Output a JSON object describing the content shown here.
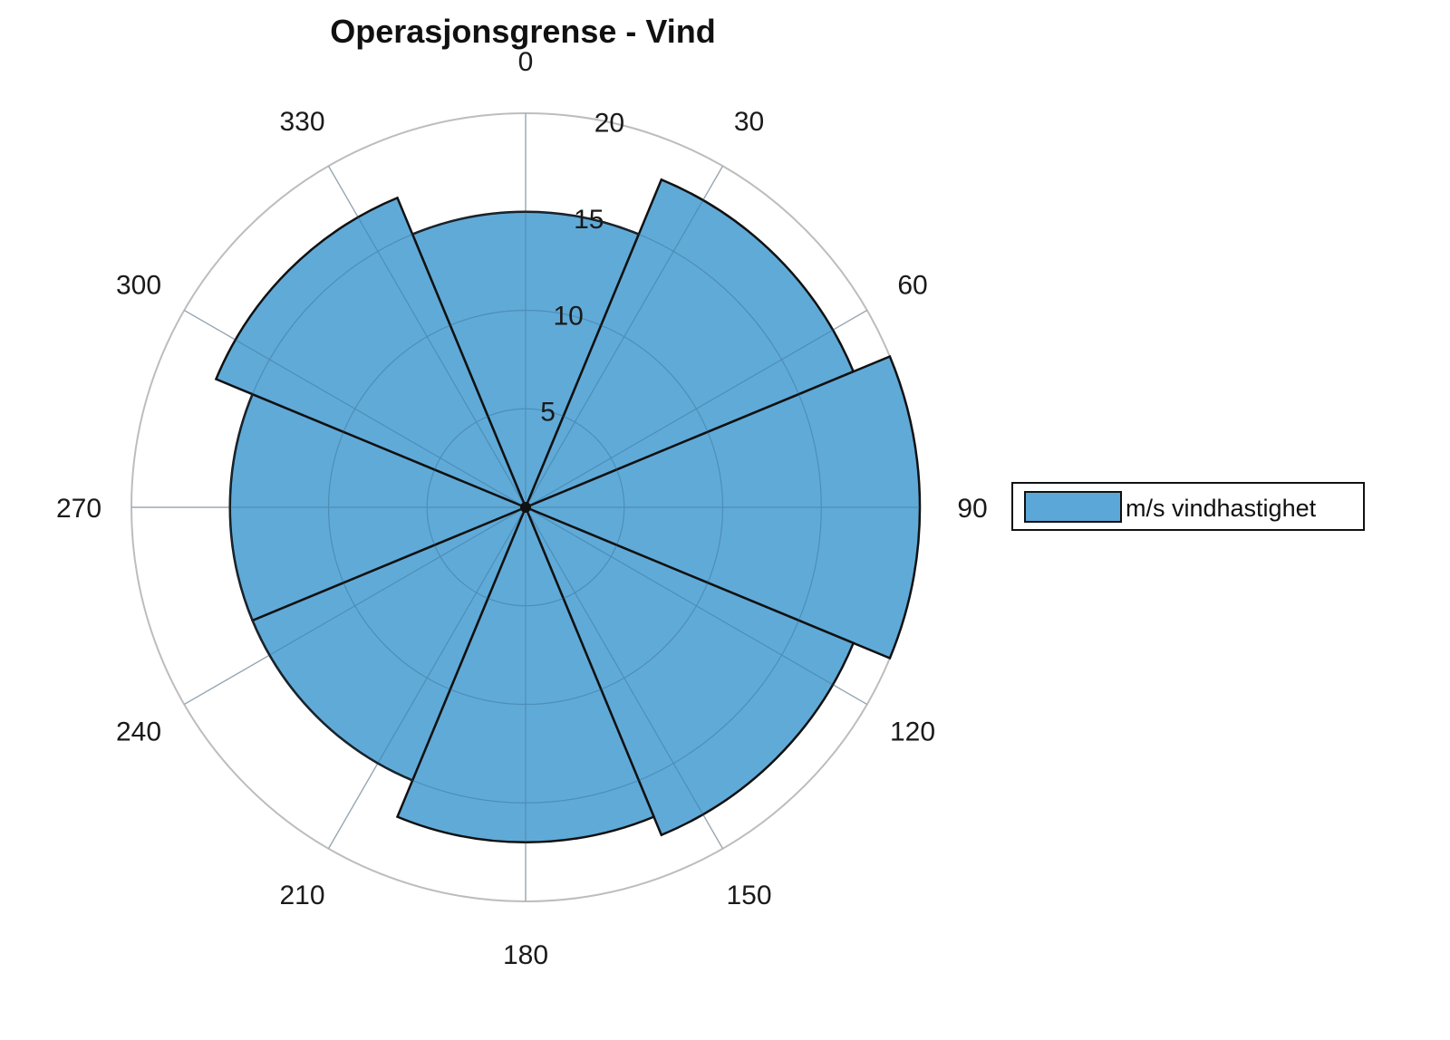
{
  "chart_data": {
    "type": "bar",
    "subtype": "polar-histogram",
    "title": "Operasjonsgrense - Vind",
    "angular_ticks": [
      "0",
      "30",
      "60",
      "90",
      "120",
      "150",
      "180",
      "210",
      "240",
      "270",
      "300",
      "330"
    ],
    "radial_ticks": [
      "5",
      "10",
      "15",
      "20"
    ],
    "rlim": [
      0,
      20
    ],
    "angle_zero": "top",
    "angle_direction": "clockwise",
    "bin_width_deg": 45,
    "series": [
      {
        "name": "m/s vindhastighet",
        "bin_start_deg": [
          -22.5,
          22.5,
          67.5,
          112.5,
          157.5,
          202.5,
          247.5,
          292.5
        ],
        "bin_center_deg": [
          0,
          45,
          90,
          135,
          180,
          225,
          270,
          315
        ],
        "values": [
          15,
          18,
          20,
          18,
          17,
          15,
          15,
          17
        ]
      }
    ],
    "legend": "right",
    "grid": true,
    "colors": {
      "bar_fill": "#5BA7D7",
      "bar_edge": "#111111",
      "grid": "#cccccc",
      "outer_ring": "#bdbdbd"
    }
  }
}
